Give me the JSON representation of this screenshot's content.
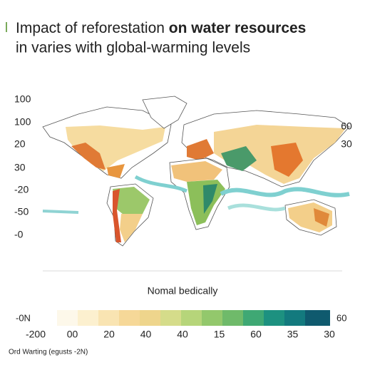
{
  "header": {
    "title_line1": "Impact of reforestation",
    "title_line1_bold": "on water resources",
    "title_line2": "in varies with global-warming levels"
  },
  "map": {
    "left_labels": [
      "100",
      "100",
      "20",
      "30",
      "-20",
      "-50",
      "-0"
    ],
    "right_labels": [
      "60",
      "30"
    ]
  },
  "legend": {
    "caption": "Nomal bedically",
    "left_label": "-0N",
    "right_label": "60",
    "scale_labels": [
      "-200",
      "00",
      "20",
      "40",
      "40",
      "15",
      "60",
      "35",
      "30"
    ]
  },
  "footer": {
    "note": "Ord Warting (egusts -2N)"
  }
}
